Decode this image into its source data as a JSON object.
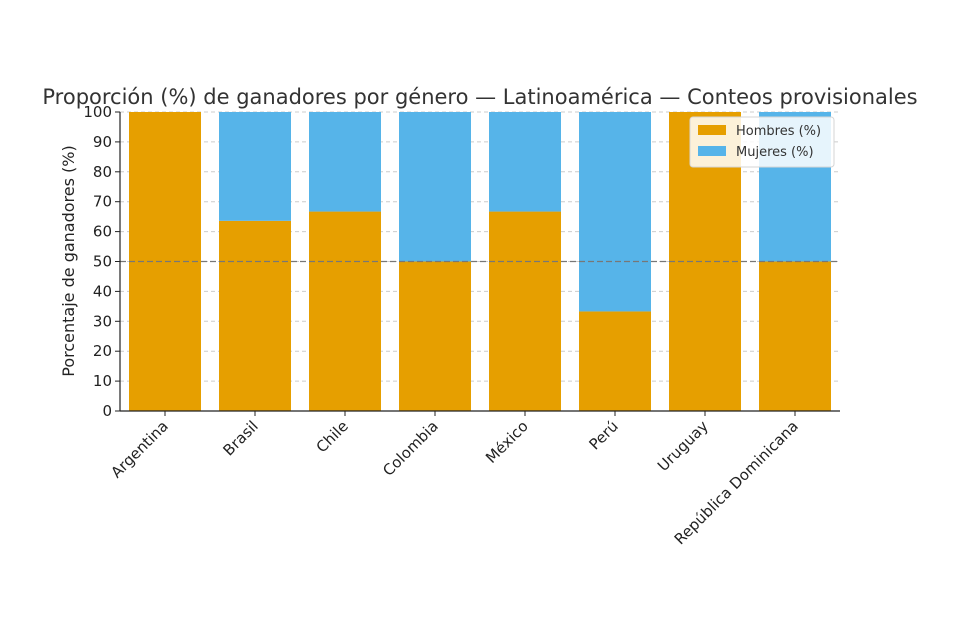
{
  "chart_data": {
    "type": "bar",
    "stacked": true,
    "title": "Proporción (%) de ganadores por género — Latinoamérica — Conteos provisionales",
    "ylabel": "Porcentaje de ganadores (%)",
    "xlabel": "",
    "ylim": [
      0,
      100
    ],
    "yticks": [
      0,
      10,
      20,
      30,
      40,
      50,
      60,
      70,
      80,
      90,
      100
    ],
    "categories": [
      "Argentina",
      "Brasil",
      "Chile",
      "Colombia",
      "México",
      "Perú",
      "Uruguay",
      "República Dominicana"
    ],
    "series": [
      {
        "name": "Hombres (%)",
        "color": "#E69F00",
        "values": [
          100,
          63.6,
          66.7,
          50,
          66.7,
          33.3,
          100,
          50
        ]
      },
      {
        "name": "Mujeres (%)",
        "color": "#56B4E9",
        "values": [
          0,
          36.4,
          33.3,
          50,
          33.3,
          66.7,
          0,
          50
        ]
      }
    ],
    "reference_line": {
      "y": 50,
      "style": "dashed",
      "color": "#777777"
    },
    "grid": "y-dashed",
    "legend_position": "top-right"
  }
}
